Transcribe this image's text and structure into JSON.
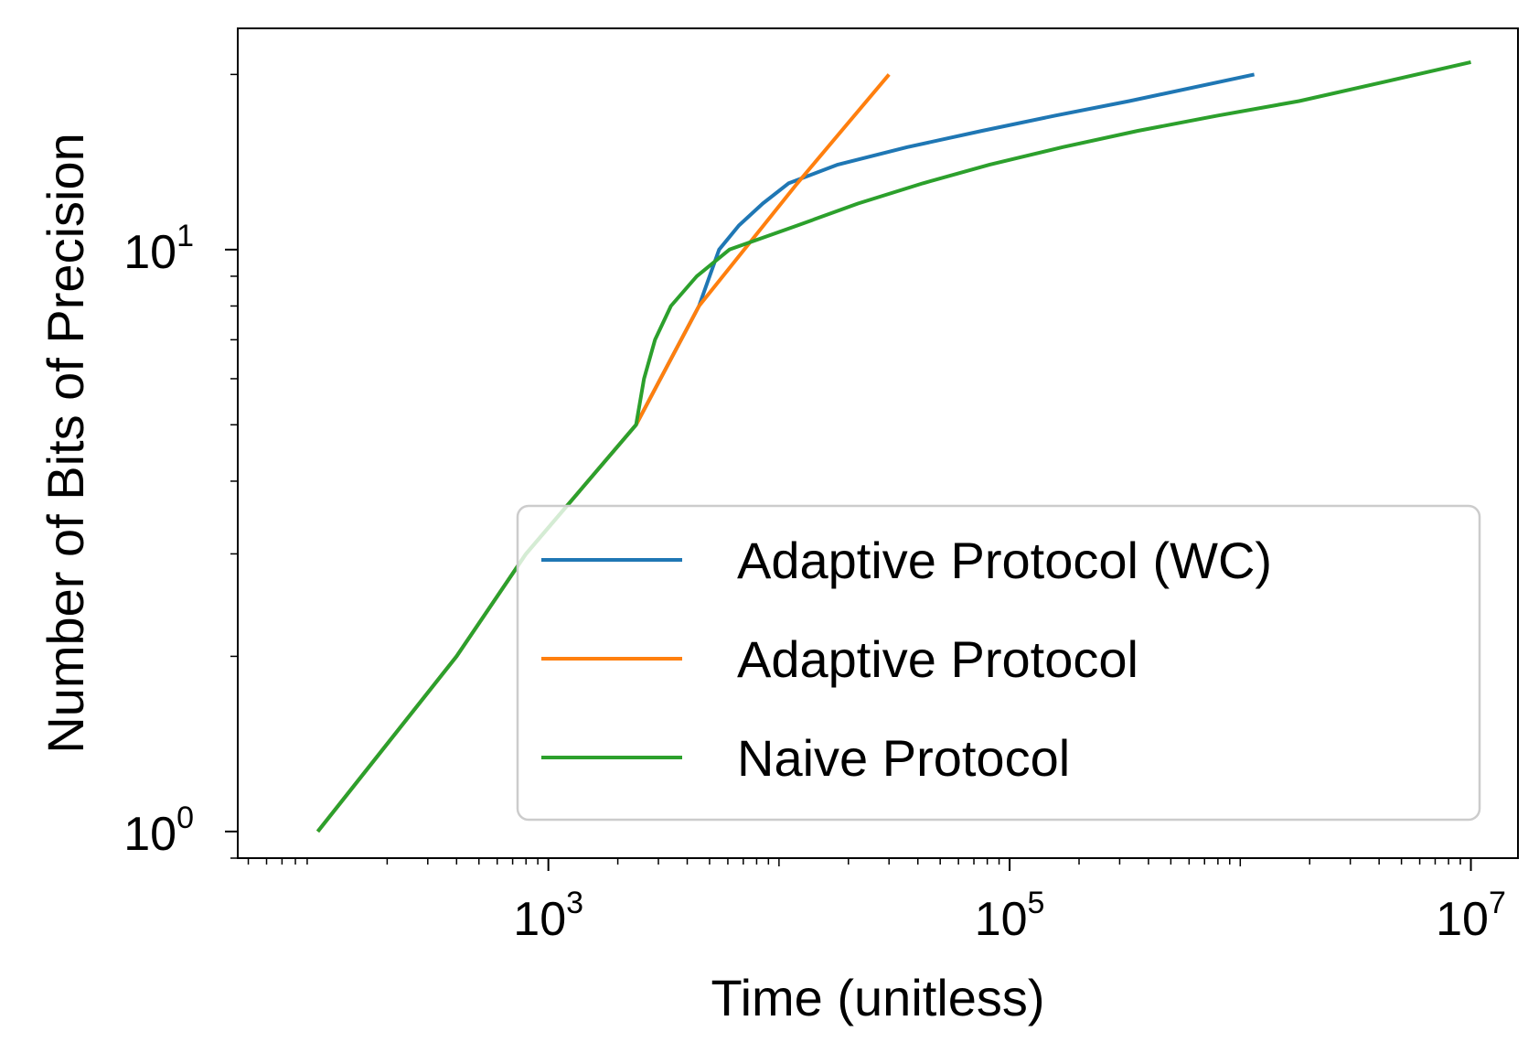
{
  "chart_data": {
    "type": "line",
    "xlabel": "Time (unitless)",
    "ylabel": "Number of Bits of Precision",
    "xscale": "log",
    "yscale": "log",
    "xlim": [
      45,
      16000000
    ],
    "ylim": [
      0.9,
      24
    ],
    "xticks": [
      {
        "base": "10",
        "exp": "3",
        "value": 1000
      },
      {
        "base": "10",
        "exp": "5",
        "value": 100000
      },
      {
        "base": "10",
        "exp": "7",
        "value": 10000000
      }
    ],
    "yticks": [
      {
        "base": "10",
        "exp": "0",
        "value": 1
      },
      {
        "base": "10",
        "exp": "1",
        "value": 10
      }
    ],
    "y_minor_ticks": [
      2,
      3,
      4,
      5,
      6,
      7,
      8,
      9,
      20
    ],
    "legend": {
      "placement": "lower-right"
    },
    "grid": false,
    "series": [
      {
        "name": "Adaptive Protocol (WC)",
        "color": "#1f77b4",
        "points": [
          [
            100,
            1
          ],
          [
            400,
            2
          ],
          [
            800,
            3
          ],
          [
            2400,
            5
          ],
          [
            4500,
            8
          ],
          [
            5000,
            9
          ],
          [
            5500,
            10
          ],
          [
            6700,
            11
          ],
          [
            8500,
            12
          ],
          [
            11000,
            13
          ],
          [
            18000,
            14
          ],
          [
            36000,
            15
          ],
          [
            76000,
            16
          ],
          [
            158000,
            17
          ],
          [
            330000,
            18
          ],
          [
            1150000,
            20
          ]
        ]
      },
      {
        "name": "Adaptive Protocol",
        "color": "#ff7f0e",
        "points": [
          [
            100,
            1
          ],
          [
            400,
            2
          ],
          [
            800,
            3
          ],
          [
            2400,
            5
          ],
          [
            4500,
            8
          ],
          [
            12000,
            13
          ],
          [
            30000,
            20
          ]
        ]
      },
      {
        "name": "Naive Protocol",
        "color": "#2ca02c",
        "points": [
          [
            100,
            1
          ],
          [
            400,
            2
          ],
          [
            800,
            3
          ],
          [
            2400,
            5
          ],
          [
            2600,
            6
          ],
          [
            2900,
            7
          ],
          [
            3400,
            8
          ],
          [
            4400,
            9
          ],
          [
            6100,
            10
          ],
          [
            12000,
            11
          ],
          [
            22000,
            12
          ],
          [
            42000,
            13
          ],
          [
            82000,
            14
          ],
          [
            170000,
            15
          ],
          [
            360000,
            16
          ],
          [
            800000,
            17
          ],
          [
            1800000,
            18
          ],
          [
            4400000,
            19.5
          ],
          [
            10000000,
            21
          ]
        ]
      }
    ]
  }
}
